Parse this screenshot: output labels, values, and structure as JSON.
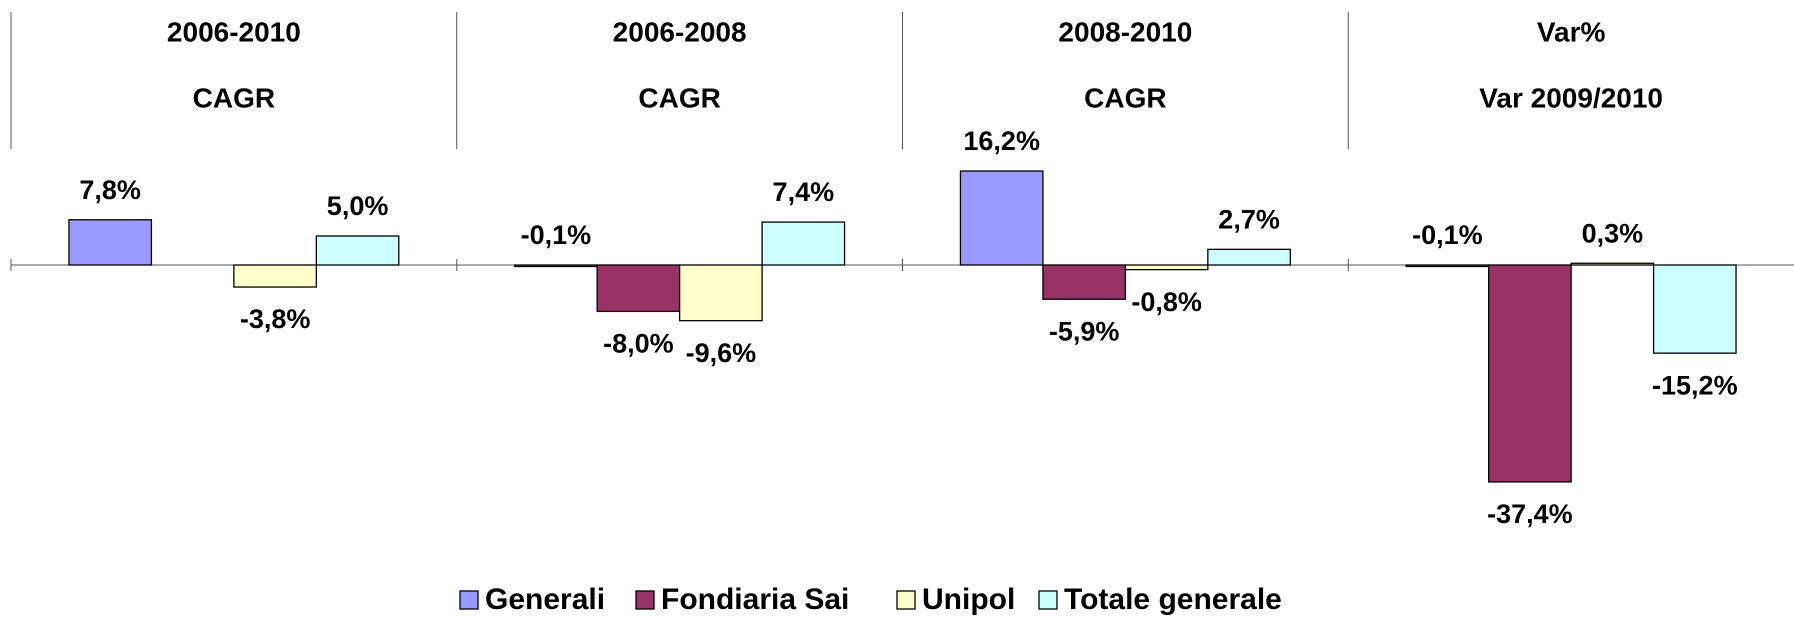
{
  "chart_data": {
    "type": "bar",
    "categories": [
      [
        "2006-2010",
        "CAGR"
      ],
      [
        "2006-2008",
        "CAGR"
      ],
      [
        "2008-2010",
        "CAGR"
      ],
      [
        "Var%",
        "Var 2009/2010"
      ]
    ],
    "series": [
      {
        "name": "Generali",
        "color": "#9999ff",
        "values": [
          7.8,
          -0.1,
          16.2,
          -0.1
        ],
        "value_labels": [
          "7,8%",
          "-0,1%",
          "16,2%",
          "-0,1%"
        ]
      },
      {
        "name": "Fondiaria Sai",
        "color": "#993366",
        "values": [
          null,
          -8.0,
          -5.9,
          -37.4
        ],
        "value_labels": [
          null,
          "-8,0%",
          "-5,9%",
          "-37,4%"
        ]
      },
      {
        "name": "Unipol",
        "color": "#ffffcc",
        "values": [
          -3.8,
          -9.6,
          -0.8,
          0.3
        ],
        "value_labels": [
          "-3,8%",
          "-9,6%",
          "-0,8%",
          "0,3%"
        ]
      },
      {
        "name": "Totale generale",
        "color": "#ccffff",
        "values": [
          5.0,
          7.4,
          2.7,
          -15.2
        ],
        "value_labels": [
          "5,0%",
          "7,4%",
          "2,7%",
          "-15,2%"
        ]
      }
    ],
    "ylim": [
      -40,
      20
    ],
    "legend": "bottom"
  }
}
